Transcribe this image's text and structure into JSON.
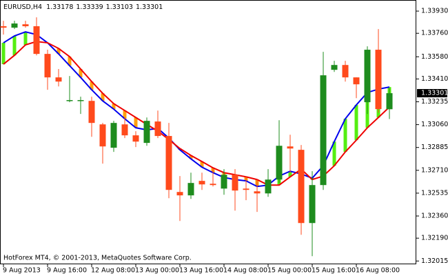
{
  "chart_data": {
    "type": "candlestick",
    "symbol": "EURUSD,H4",
    "watermark": "HotForex MT4, © 2001-2013, MetaQuotes Software Corp.",
    "categories": [
      "9 Aug 2013",
      null,
      null,
      null,
      "9 Aug 16:00",
      null,
      null,
      null,
      "12 Aug 08:00",
      null,
      null,
      null,
      "13 Aug 00:00",
      null,
      null,
      null,
      "13 Aug 16:00",
      null,
      null,
      null,
      "14 Aug 08:00",
      null,
      null,
      null,
      "15 Aug 00:00",
      null,
      null,
      null,
      "15 Aug 16:00",
      null,
      null,
      null,
      "16 Aug 08:00",
      null,
      null,
      null
    ],
    "open": [
      1.33814,
      1.33803,
      1.33829,
      1.33814,
      1.33602,
      1.33422,
      1.33242,
      1.33242,
      1.33242,
      1.33062,
      1.32883,
      1.33062,
      1.32978,
      1.3292,
      1.33084,
      1.32973,
      1.32544,
      1.32518,
      1.32629,
      1.32607,
      1.3257,
      1.32676,
      1.3257,
      1.32549,
      1.32533,
      1.32639,
      1.32893,
      1.32867,
      1.32306,
      1.32597,
      1.3348,
      1.33517,
      1.33422,
      1.33232,
      1.33634,
      1.33178
    ],
    "high": [
      1.33856,
      1.33856,
      1.33856,
      1.33882,
      1.33634,
      1.33486,
      1.33433,
      1.33274,
      1.33274,
      1.33073,
      1.33089,
      1.33115,
      1.3301,
      1.33115,
      1.33168,
      1.33073,
      1.32666,
      1.32692,
      1.32692,
      1.32719,
      1.32719,
      1.32719,
      1.32666,
      1.32639,
      1.32719,
      1.33094,
      1.32983,
      1.32904,
      1.32703,
      1.33618,
      1.33549,
      1.33549,
      1.33422,
      1.3366,
      1.33792,
      1.33339
    ],
    "low": [
      1.3375,
      1.33792,
      1.33803,
      1.33591,
      1.33327,
      1.33353,
      1.33232,
      1.33142,
      1.32967,
      1.32761,
      1.32851,
      1.32957,
      1.32888,
      1.32898,
      1.32957,
      1.32496,
      1.32322,
      1.32491,
      1.3256,
      1.32586,
      1.32523,
      1.32401,
      1.32481,
      1.32391,
      1.32507,
      1.32613,
      1.32692,
      1.32216,
      1.32052,
      1.3256,
      1.33464,
      1.3339,
      1.33263,
      1.33142,
      1.33152,
      1.33103
    ],
    "close": [
      1.33803,
      1.33835,
      1.33814,
      1.33602,
      1.33422,
      1.3339,
      1.33248,
      1.33248,
      1.33073,
      1.32893,
      1.33073,
      1.32978,
      1.3293,
      1.33089,
      1.32973,
      1.3256,
      1.32518,
      1.32613,
      1.32602,
      1.32597,
      1.32676,
      1.32555,
      1.3256,
      1.32533,
      1.32639,
      1.32898,
      1.32877,
      1.32306,
      1.32597,
      1.33438,
      1.33517,
      1.33422,
      1.33369,
      1.33634,
      1.33179,
      1.33301
    ],
    "up_color": "#1e8c1e",
    "down_color": "#ff4a1c",
    "moving_averages": [
      {
        "color": "#0000ee",
        "values": [
          1.33687,
          1.3374,
          1.33771,
          1.3375,
          1.33687,
          1.33602,
          1.33512,
          1.33422,
          1.33327,
          1.33242,
          1.33179,
          1.33105,
          1.33036,
          1.3302,
          1.33031,
          1.32957,
          1.32867,
          1.32798,
          1.32734,
          1.32692,
          1.32655,
          1.32639,
          1.32629,
          1.32586,
          1.32597,
          1.32666,
          1.32703,
          1.32682,
          1.3265,
          1.32745,
          1.3293,
          1.33105,
          1.33211,
          1.33306,
          1.33332,
          1.33348
        ]
      },
      {
        "color": "#ee0000",
        "values": [
          1.33523,
          1.33591,
          1.33671,
          1.33697,
          1.33687,
          1.33644,
          1.33581,
          1.33486,
          1.3339,
          1.333,
          1.33221,
          1.33168,
          1.33115,
          1.33062,
          1.3301,
          1.32946,
          1.32877,
          1.32824,
          1.32777,
          1.32729,
          1.32692,
          1.32676,
          1.3266,
          1.32639,
          1.32597,
          1.32597,
          1.3266,
          1.32719,
          1.32639,
          1.32666,
          1.32745,
          1.32851,
          1.32941,
          1.33036,
          1.33115,
          1.33195
        ]
      }
    ],
    "band_up_color": "#55ee11",
    "band_down_color": "#ffa010",
    "ylim": [
      1.3199,
      1.34015
    ],
    "yticks": [
      {
        "value": 1.3393,
        "label": "1.33930"
      },
      {
        "value": 1.3376,
        "label": "1.33760"
      },
      {
        "value": 1.3358,
        "label": "1.33580"
      },
      {
        "value": 1.3341,
        "label": "1.33410"
      },
      1.33235,
      {
        "value": 1.3306,
        "label": "1.33060"
      },
      1.32885,
      {
        "value": 1.3271,
        "label": "1.32710"
      },
      1.32535,
      {
        "value": 1.3236,
        "label": "1.32360"
      },
      {
        "value": 1.3219,
        "label": "1.32190"
      },
      1.32015
    ]
  }
}
